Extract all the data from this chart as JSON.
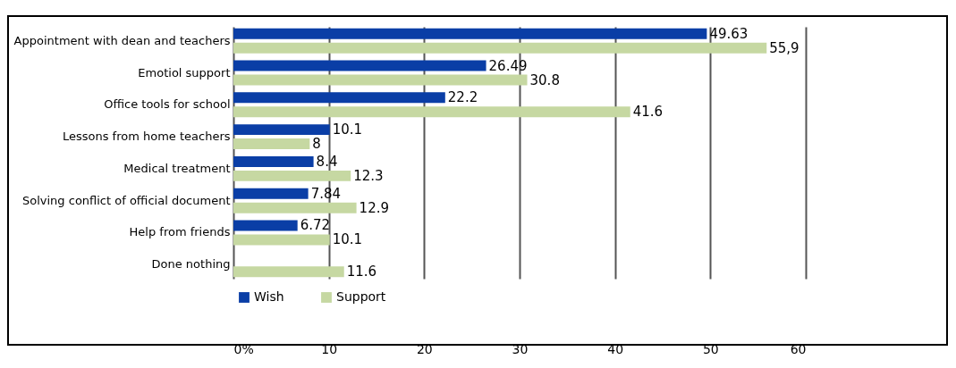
{
  "chart_data": {
    "type": "bar",
    "orientation": "horizontal",
    "categories": [
      "Appointment with dean and teachers",
      "Emotiol support",
      "Office tools for school",
      "Lessons from home teachers",
      "Medical treatment",
      "Solving conflict of official document",
      "Help from friends",
      "Done nothing"
    ],
    "series": [
      {
        "name": "Wish",
        "color": "#0a3ea6",
        "values": [
          49.63,
          26.49,
          22.2,
          10.1,
          8.4,
          7.84,
          6.72,
          null
        ],
        "value_labels": [
          "49.63",
          "26.49",
          "22.2",
          "10.1",
          "8.4",
          "7.84",
          "6.72",
          null
        ]
      },
      {
        "name": "Support",
        "color": "#c6d8a2",
        "values": [
          55.9,
          30.8,
          41.6,
          8,
          12.3,
          12.9,
          10.1,
          11.6
        ],
        "value_labels": [
          "55,9",
          "30.8",
          "41.6",
          "8",
          "12.3",
          "12.9",
          "10.1",
          "11.6"
        ]
      }
    ],
    "xlim": [
      0,
      60
    ],
    "xticks": [
      {
        "value": 0,
        "label": "0%"
      },
      10,
      20,
      30,
      40,
      50,
      60
    ],
    "grid": "x",
    "legend": "bottom"
  }
}
